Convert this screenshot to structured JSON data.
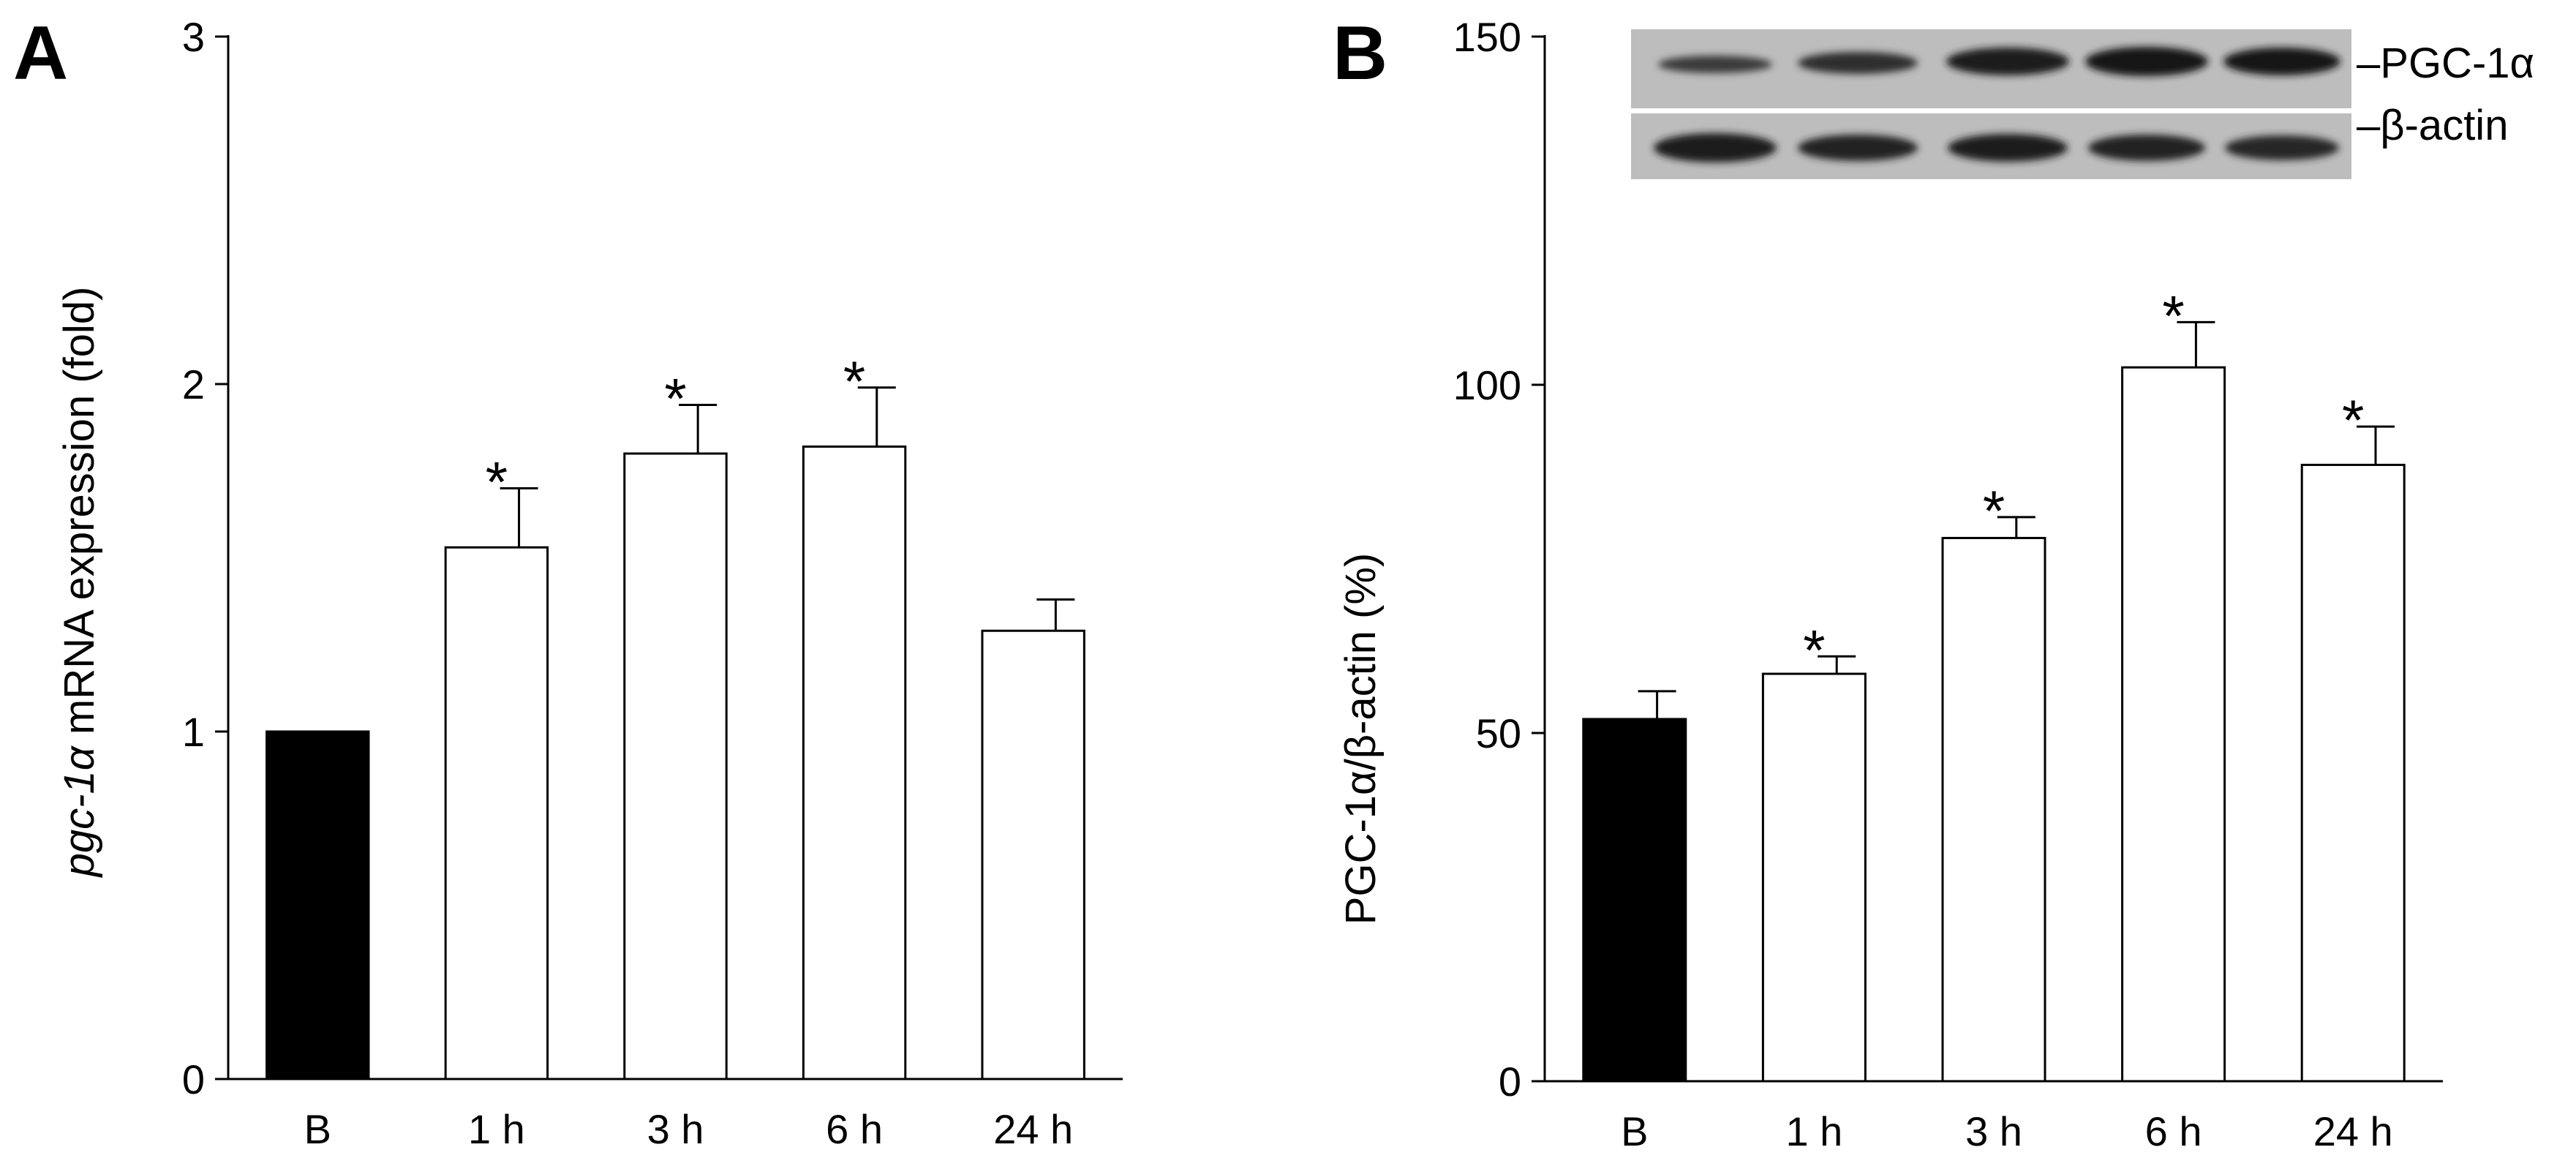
{
  "chart_data": [
    {
      "panel_label": "A",
      "type": "bar",
      "categories": [
        "B",
        "1 h",
        "3 h",
        "6 h",
        "24 h"
      ],
      "values": [
        1.0,
        1.53,
        1.8,
        1.82,
        1.29
      ],
      "errors": [
        0.0,
        0.17,
        0.14,
        0.17,
        0.09
      ],
      "significance": [
        "",
        "*",
        "*",
        "*",
        ""
      ],
      "bar_colors": [
        "#000000",
        "#ffffff",
        "#ffffff",
        "#ffffff",
        "#ffffff"
      ],
      "ylabel_italic": "pgc-1α",
      "ylabel_rest": " mRNA expression (fold)",
      "ylim": [
        0,
        3
      ],
      "yticks": [
        "0",
        "1",
        "2",
        "3"
      ],
      "grid": false
    },
    {
      "panel_label": "B",
      "type": "bar",
      "categories": [
        "B",
        "1 h",
        "3 h",
        "6 h",
        "24 h"
      ],
      "values": [
        52,
        58.5,
        78,
        102.5,
        88.5
      ],
      "errors": [
        4,
        2.5,
        3,
        6.5,
        5.5
      ],
      "significance": [
        "",
        "*",
        "*",
        "*",
        "*"
      ],
      "bar_colors": [
        "#000000",
        "#ffffff",
        "#ffffff",
        "#ffffff",
        "#ffffff"
      ],
      "ylabel": "PGC-1α/β-actin (%)",
      "ylim": [
        0,
        150
      ],
      "yticks": [
        "0",
        "50",
        "100",
        "150"
      ],
      "grid": false,
      "blot_labels": [
        "–PGC-1α",
        "–β-actin"
      ]
    }
  ]
}
